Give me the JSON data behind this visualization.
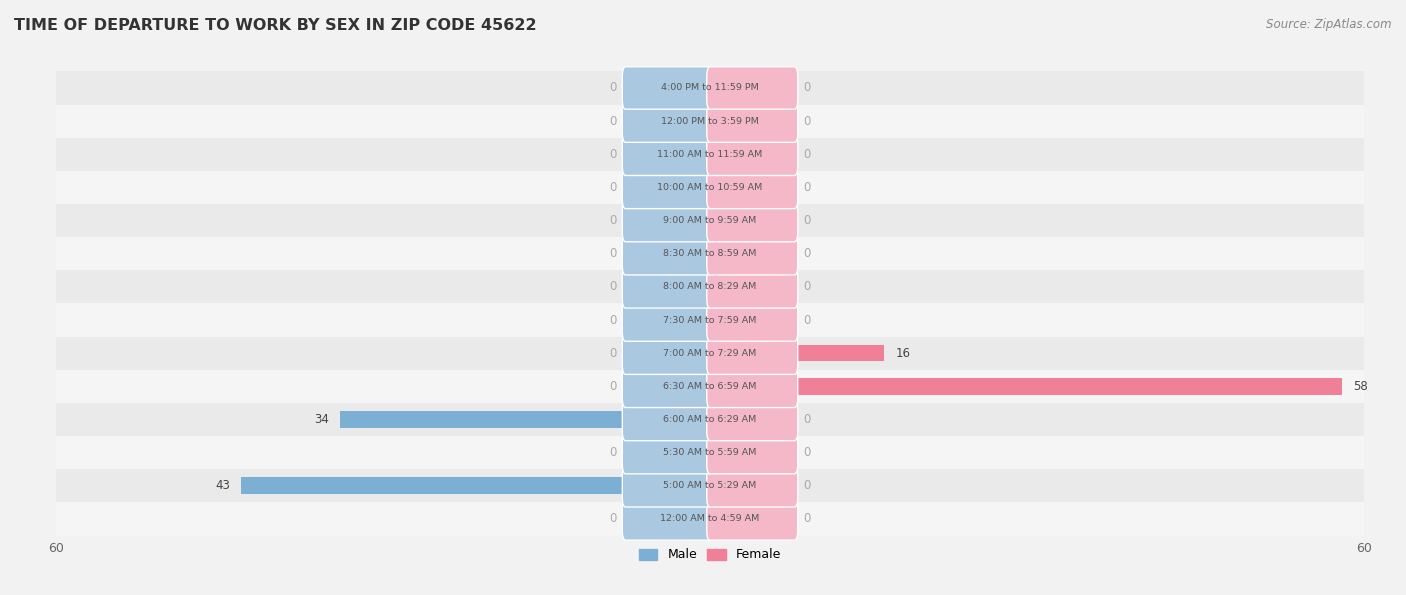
{
  "title": "TIME OF DEPARTURE TO WORK BY SEX IN ZIP CODE 45622",
  "source": "Source: ZipAtlas.com",
  "categories": [
    "12:00 AM to 4:59 AM",
    "5:00 AM to 5:29 AM",
    "5:30 AM to 5:59 AM",
    "6:00 AM to 6:29 AM",
    "6:30 AM to 6:59 AM",
    "7:00 AM to 7:29 AM",
    "7:30 AM to 7:59 AM",
    "8:00 AM to 8:29 AM",
    "8:30 AM to 8:59 AM",
    "9:00 AM to 9:59 AM",
    "10:00 AM to 10:59 AM",
    "11:00 AM to 11:59 AM",
    "12:00 PM to 3:59 PM",
    "4:00 PM to 11:59 PM"
  ],
  "male_values": [
    0,
    43,
    0,
    34,
    0,
    0,
    0,
    0,
    0,
    0,
    0,
    0,
    0,
    0
  ],
  "female_values": [
    0,
    0,
    0,
    0,
    58,
    16,
    0,
    0,
    0,
    0,
    0,
    0,
    0,
    0
  ],
  "male_color": "#7bafd4",
  "female_color": "#f08098",
  "bar_bg_color": "#f0f0f0",
  "row_bg_colors": [
    "#f5f5f5",
    "#eaeaea"
  ],
  "axis_limit": 60,
  "label_box_male_color": "#aac8e0",
  "label_box_female_color": "#f4b8c8",
  "label_text_color": "#555555",
  "title_color": "#333333",
  "source_color": "#888888",
  "axis_label_color": "#666666",
  "zero_label_color": "#aaaaaa",
  "value_label_color": "#444444"
}
